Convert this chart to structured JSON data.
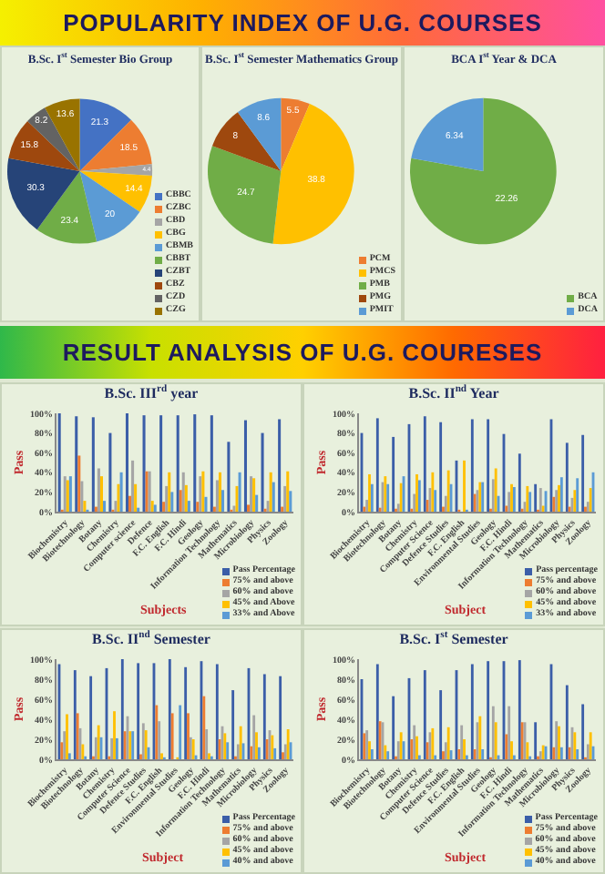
{
  "chart_data": [
    {
      "type": "pie",
      "title": "B.Sc. I$^{st}$ Semester Bio Group",
      "annotations": [
        "POPULARITY INDEX OF U.G. COURSES"
      ],
      "categories": [
        "CBBC",
        "CZBC",
        "CBD",
        "CBG",
        "CBMB",
        "CBBT",
        "CZBT",
        "CBZ",
        "CZD",
        "CZG"
      ],
      "values": [
        21.3,
        18.5,
        4.4,
        14.4,
        20,
        23.4,
        30.3,
        15.8,
        8.2,
        13.6
      ],
      "colors": [
        "#4472c4",
        "#ed7d31",
        "#a5a5a5",
        "#ffc000",
        "#5b9bd5",
        "#70ad47",
        "#264478",
        "#9e480e",
        "#636363",
        "#997300"
      ],
      "data_labels": true,
      "legend": "bottom right"
    },
    {
      "type": "pie",
      "title": "B.Sc. I$^{st}$ Semester Mathematics Group",
      "categories": [
        "PCM",
        "PMCS",
        "PMB",
        "PMG",
        "PMIT"
      ],
      "values": [
        5.5,
        38.8,
        24.7,
        8,
        8.6
      ],
      "colors": [
        "#ed7d31",
        "#ffc000",
        "#70ad47",
        "#9e480e",
        "#5b9bd5"
      ],
      "data_labels": true,
      "legend": "bottom right"
    },
    {
      "type": "pie",
      "title": "BCA I$^{st}$ Year & DCA",
      "categories": [
        "BCA",
        "DCA"
      ],
      "values": [
        22.26,
        6.34
      ],
      "colors": [
        "#70ad47",
        "#5b9bd5"
      ],
      "data_labels": true,
      "legend": "bottom right"
    },
    {
      "type": "bar",
      "title": "B.Sc. III$^{rd}$ year",
      "annotations": [
        "RESULT ANALYSIS OF U.G. COURESES"
      ],
      "xlabel": "Subjects",
      "ylabel": "Pass",
      "ylim": [
        0,
        100
      ],
      "yticks": [
        {
          "value": 0,
          "label": "0%"
        },
        {
          "value": 20,
          "label": "20%"
        },
        {
          "value": 40,
          "label": "40%"
        },
        {
          "value": 60,
          "label": "60%"
        },
        {
          "value": 80,
          "label": "80%"
        },
        {
          "value": 100,
          "label": "100%"
        }
      ],
      "legend": "bottom right",
      "categories": [
        "Biochemistry",
        "Biotechnology",
        "Botany",
        "Chemistry",
        "Computer science",
        "Defence",
        "F.C. English",
        "F.C. Hindi",
        "Geology",
        "Information Technology",
        "Mathematics",
        "Microbiology",
        "Physics",
        "Zoology"
      ],
      "series": [
        {
          "name": "Pass Percentage",
          "color": "#3b5ea8",
          "values": [
            100,
            97,
            96,
            80,
            100,
            98,
            98,
            98,
            99,
            98,
            71,
            93,
            80,
            94
          ]
        },
        {
          "name": "75% and above",
          "color": "#ed7d31",
          "values": [
            2,
            57,
            5,
            2,
            16,
            41,
            10,
            22,
            10,
            5,
            2,
            7,
            3,
            5
          ]
        },
        {
          "name": "60% and above",
          "color": "#a5a5a5",
          "values": [
            36,
            31,
            44,
            11,
            52,
            41,
            26,
            40,
            36,
            32,
            6,
            36,
            11,
            26
          ]
        },
        {
          "name": "45% and Above",
          "color": "#ffc000",
          "values": [
            32,
            11,
            36,
            28,
            28,
            11,
            40,
            27,
            41,
            40,
            26,
            34,
            40,
            41
          ]
        },
        {
          "name": "33% and Above",
          "color": "#5b9bd5",
          "values": [
            36,
            2,
            11,
            40,
            4,
            7,
            20,
            11,
            15,
            22,
            40,
            17,
            30,
            21
          ]
        }
      ]
    },
    {
      "type": "bar",
      "title": "B.Sc. II$^{nd}$ Year",
      "xlabel": "Subject",
      "ylabel": "Pass",
      "ylim": [
        0,
        100
      ],
      "yticks": [
        {
          "value": 0,
          "label": "0%"
        },
        {
          "value": 20,
          "label": "20%"
        },
        {
          "value": 40,
          "label": "40%"
        },
        {
          "value": 60,
          "label": "60%"
        },
        {
          "value": 80,
          "label": "80%"
        },
        {
          "value": 100,
          "label": "100%"
        }
      ],
      "legend": "bottom right",
      "categories": [
        "Biochemistry",
        "Biotechnology",
        "Botany",
        "Chemistry",
        "Computer Science",
        "Defence Studies",
        "F.C. English",
        "Environmental Studies",
        "Geology",
        "F.C. Hindi",
        "Information Technology",
        "Mathematics",
        "Microbiology",
        "Physics",
        "Zoology"
      ],
      "series": [
        {
          "name": "Pass percentage",
          "color": "#3b5ea8",
          "values": [
            80,
            95,
            76,
            89,
            97,
            91,
            52,
            94,
            94,
            79,
            59,
            28,
            94,
            70,
            78
          ]
        },
        {
          "name": "75% and above",
          "color": "#ed7d31",
          "values": [
            5,
            4,
            3,
            3,
            12,
            5,
            2,
            18,
            3,
            6,
            3,
            2,
            15,
            5,
            5
          ]
        },
        {
          "name": "60% and above",
          "color": "#a5a5a5",
          "values": [
            12,
            30,
            8,
            18,
            24,
            16,
            null,
            22,
            33,
            20,
            10,
            24,
            22,
            14,
            10
          ]
        },
        {
          "name": "45% and above",
          "color": "#ffc000",
          "values": [
            38,
            36,
            29,
            38,
            40,
            42,
            52,
            30,
            44,
            28,
            26,
            6,
            27,
            22,
            24
          ]
        },
        {
          "name": "33% and above",
          "color": "#5b9bd5",
          "values": [
            28,
            28,
            36,
            32,
            22,
            28,
            2,
            30,
            16,
            25,
            20,
            21,
            35,
            34,
            40
          ]
        }
      ]
    },
    {
      "type": "bar",
      "title": "B.Sc. II$^{nd}$ Semester",
      "xlabel": "Subject",
      "ylabel": "Pass",
      "ylim": [
        0,
        100
      ],
      "yticks": [
        {
          "value": 0,
          "label": "0%"
        },
        {
          "value": 20,
          "label": "20%"
        },
        {
          "value": 40,
          "label": "40%"
        },
        {
          "value": 60,
          "label": "60%"
        },
        {
          "value": 80,
          "label": "80%"
        },
        {
          "value": 100,
          "label": "100%"
        }
      ],
      "legend": "bottom right",
      "categories": [
        "Biochemistry",
        "Biotechnology",
        "Botany",
        "Chemistry",
        "Computer Science",
        "Defence Studies",
        "F.C. English",
        "Environmental Studies",
        "Geology",
        "F.C. Hindi",
        "Information Technology",
        "Mathematics",
        "Microbiology",
        "Physics",
        "Zoology"
      ],
      "series": [
        {
          "name": "Pass Percentage",
          "color": "#3b5ea8",
          "values": [
            95,
            89,
            83,
            91,
            100,
            96,
            96,
            100,
            92,
            98,
            95,
            69,
            91,
            85,
            83
          ]
        },
        {
          "name": "75% and above",
          "color": "#ed7d31",
          "values": [
            17,
            46,
            3,
            3,
            28,
            5,
            54,
            46,
            46,
            63,
            20,
            3,
            13,
            20,
            7
          ]
        },
        {
          "name": "60% and above",
          "color": "#a5a5a5",
          "values": [
            28,
            31,
            22,
            21,
            43,
            36,
            38,
            null,
            22,
            30,
            33,
            15,
            44,
            29,
            15
          ]
        },
        {
          "name": "45% and above",
          "color": "#ffc000",
          "values": [
            45,
            15,
            34,
            48,
            28,
            29,
            6,
            2,
            20,
            6,
            26,
            33,
            27,
            24,
            30
          ]
        },
        {
          "name": "40% and above",
          "color": "#5b9bd5",
          "values": [
            6,
            3,
            22,
            21,
            28,
            12,
            2,
            54,
            4,
            3,
            17,
            16,
            12,
            11,
            17
          ]
        }
      ]
    },
    {
      "type": "bar",
      "title": "B.Sc. I$^{st}$ Semester",
      "xlabel": "Subject",
      "ylabel": "Pass",
      "ylim": [
        0,
        100
      ],
      "yticks": [
        {
          "value": 0,
          "label": "0%"
        },
        {
          "value": 20,
          "label": "20%"
        },
        {
          "value": 40,
          "label": "40%"
        },
        {
          "value": 60,
          "label": "60%"
        },
        {
          "value": 80,
          "label": "80%"
        },
        {
          "value": 100,
          "label": "100%"
        }
      ],
      "legend": "bottom right",
      "categories": [
        "Biochemistry",
        "Biotechnology",
        "Botany",
        "Chemistry",
        "Computer Science",
        "Defence Studies",
        "F.C. English",
        "Environmental Studies",
        "Geology",
        "F.C. Hindi",
        "Information Technology",
        "Mathematics",
        "Microbiology",
        "Physics",
        "Zoology"
      ],
      "series": [
        {
          "name": "Pass Percentage",
          "color": "#3b5ea8",
          "values": [
            80,
            95,
            63,
            81,
            89,
            69,
            89,
            95,
            98,
            98,
            99,
            37,
            95,
            74,
            55
          ]
        },
        {
          "name": "75% and above",
          "color": "#ed7d31",
          "values": [
            26,
            38,
            3,
            20,
            17,
            8,
            10,
            10,
            2,
            25,
            37,
            3,
            12,
            12,
            2
          ]
        },
        {
          "name": "60% and above",
          "color": "#a5a5a5",
          "values": [
            29,
            37,
            18,
            34,
            27,
            17,
            34,
            37,
            53,
            53,
            37,
            8,
            38,
            32,
            15
          ]
        },
        {
          "name": "45% and above",
          "color": "#ffc000",
          "values": [
            18,
            14,
            27,
            23,
            31,
            32,
            20,
            43,
            37,
            18,
            17,
            14,
            33,
            27,
            27
          ]
        },
        {
          "name": "40% and above",
          "color": "#5b9bd5",
          "values": [
            10,
            8,
            18,
            4,
            4,
            9,
            4,
            10,
            4,
            4,
            3,
            13,
            12,
            10,
            13
          ]
        }
      ]
    }
  ]
}
